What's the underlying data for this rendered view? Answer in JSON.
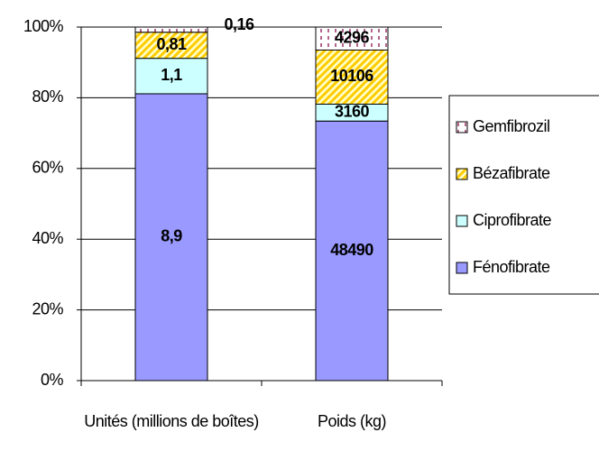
{
  "chart_data": {
    "type": "stacked_percent",
    "categories": [
      "Unités (millions de boîtes)",
      "Poids (kg)"
    ],
    "series": [
      {
        "name": "Fénofibrate",
        "color": "#9999ff",
        "pattern": "solid",
        "values": [
          8.9,
          48490
        ],
        "value_labels": [
          "8,9",
          "48490"
        ]
      },
      {
        "name": "Ciprofibrate",
        "color": "#ccffff",
        "pattern": "solid",
        "values": [
          1.1,
          3160
        ],
        "value_labels": [
          "1,1",
          "3160"
        ]
      },
      {
        "name": "Bézafibrate",
        "color": "#ffcc00",
        "pattern": "diagonal",
        "values": [
          0.81,
          10106
        ],
        "value_labels": [
          "0,81",
          "10106"
        ]
      },
      {
        "name": "Gemfibrozil",
        "color": "#993366",
        "pattern": "vertical-dashed",
        "values": [
          0.16,
          4296
        ],
        "value_labels": [
          "0,16",
          "4296"
        ]
      }
    ],
    "ylim": [
      0,
      100
    ],
    "yticks": [
      {
        "value": 0,
        "label": "0%"
      },
      {
        "value": 20,
        "label": "20%"
      },
      {
        "value": 40,
        "label": "40%"
      },
      {
        "value": 60,
        "label": "60%"
      },
      {
        "value": 80,
        "label": "80%"
      },
      {
        "value": 100,
        "label": "100%"
      }
    ],
    "grid": true,
    "legend": "right"
  }
}
